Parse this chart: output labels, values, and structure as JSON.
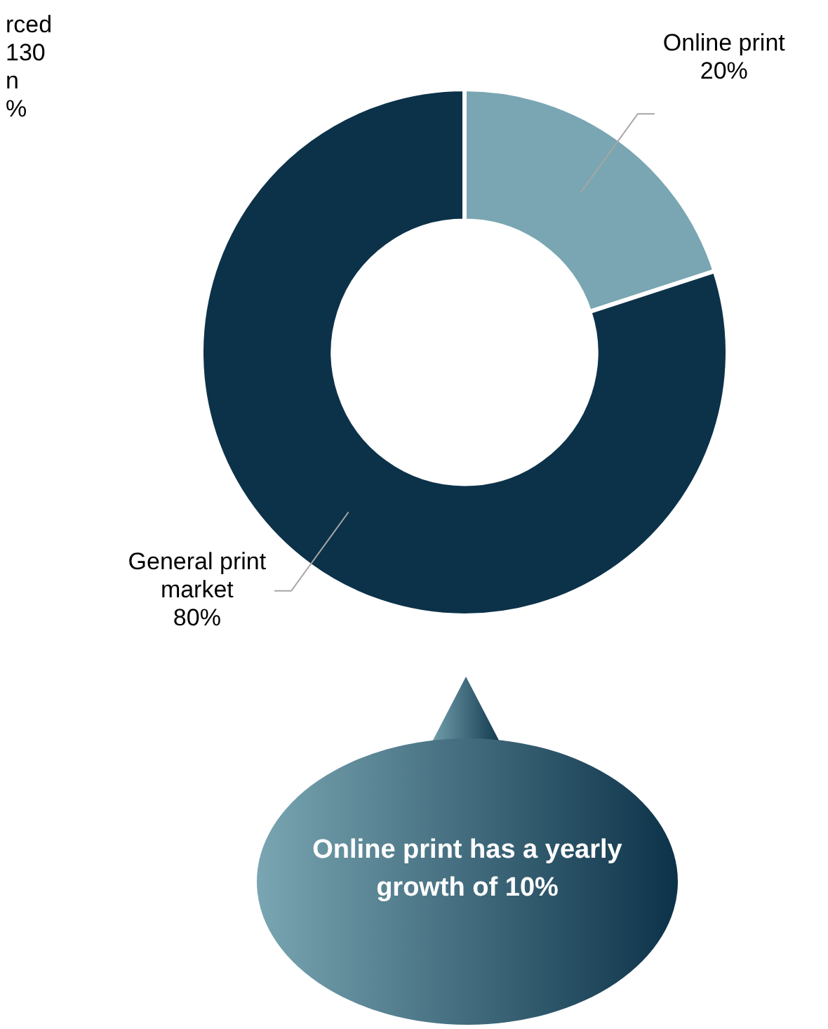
{
  "chart_data": {
    "type": "donut",
    "categories": [
      "Online print",
      "General print market"
    ],
    "values": [
      20,
      80
    ],
    "colors": [
      "#79a6b2",
      "#0c3249"
    ],
    "value_labels": [
      "20%",
      "80%"
    ],
    "legend": false,
    "annotations": [
      "rced\n130\nn\n%",
      "Online print has a yearly growth of 10%"
    ]
  }
}
